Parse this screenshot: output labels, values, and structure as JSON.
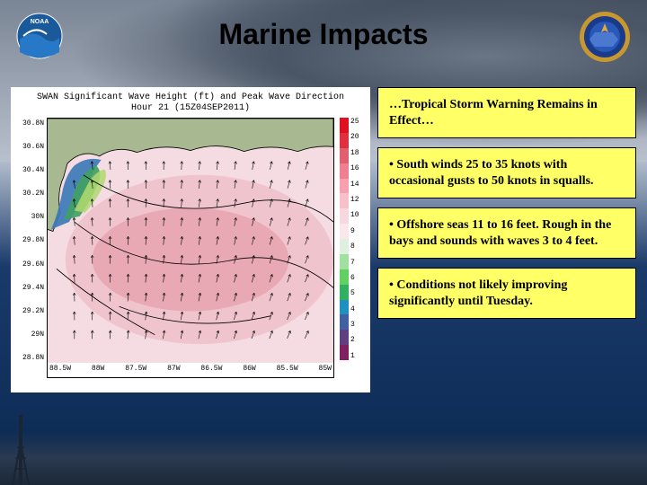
{
  "title": "Marine Impacts",
  "chart": {
    "title_line1": "SWAN Significant Wave Height (ft) and Peak Wave Direction",
    "title_line2": "Hour 21 (15Z04SEP2011)",
    "y_ticks": [
      "30.8N",
      "30.6N",
      "30.4N",
      "30.2N",
      "30N",
      "29.8N",
      "29.6N",
      "29.4N",
      "29.2N",
      "29N",
      "28.8N"
    ],
    "x_ticks": [
      "88.5W",
      "88W",
      "87.5W",
      "87W",
      "86.5W",
      "86W",
      "85.5W",
      "85W"
    ],
    "colorbar_values": [
      "25",
      "20",
      "18",
      "16",
      "14",
      "12",
      "10",
      "9",
      "8",
      "7",
      "6",
      "5",
      "4",
      "3",
      "2",
      "1"
    ],
    "colorbar_colors": [
      "#e01020",
      "#e03040",
      "#e06070",
      "#f08090",
      "#f8a0b0",
      "#f8c0c8",
      "#f8d8e0",
      "#fae8ec",
      "#e0f0e0",
      "#a0e0a0",
      "#60d060",
      "#30b060",
      "#2090c0",
      "#4060a0",
      "#604080",
      "#802060"
    ],
    "land_color": "#a8b890",
    "sea_base": "#f4dce2",
    "sea_mid": "#f0c4cc",
    "sea_deep": "#e8a8b4",
    "coast_shallow1": "#3878b8",
    "coast_shallow2": "#40a060",
    "coast_shallow3": "#b0d870",
    "arrow_color": "#000000",
    "contour_color": "#000000"
  },
  "info": {
    "warning": "…Tropical Storm Warning Remains in Effect…",
    "bullet1": "• South winds 25 to 35 knots with occasional gusts to 50 knots in squalls.",
    "bullet2": "• Offshore seas 11 to 16 feet.  Rough in the bays and sounds with waves 3 to 4 feet.",
    "bullet3": "• Conditions not likely improving significantly until Tuesday."
  },
  "logos": {
    "noaa": {
      "bg": "#1a5a9a",
      "inner": "#ffffff",
      "accent": "#2878c8",
      "text": "NOAA"
    },
    "nws": {
      "outer": "#c89830",
      "mid": "#1a3a8a",
      "inner": "#2858b8"
    }
  }
}
